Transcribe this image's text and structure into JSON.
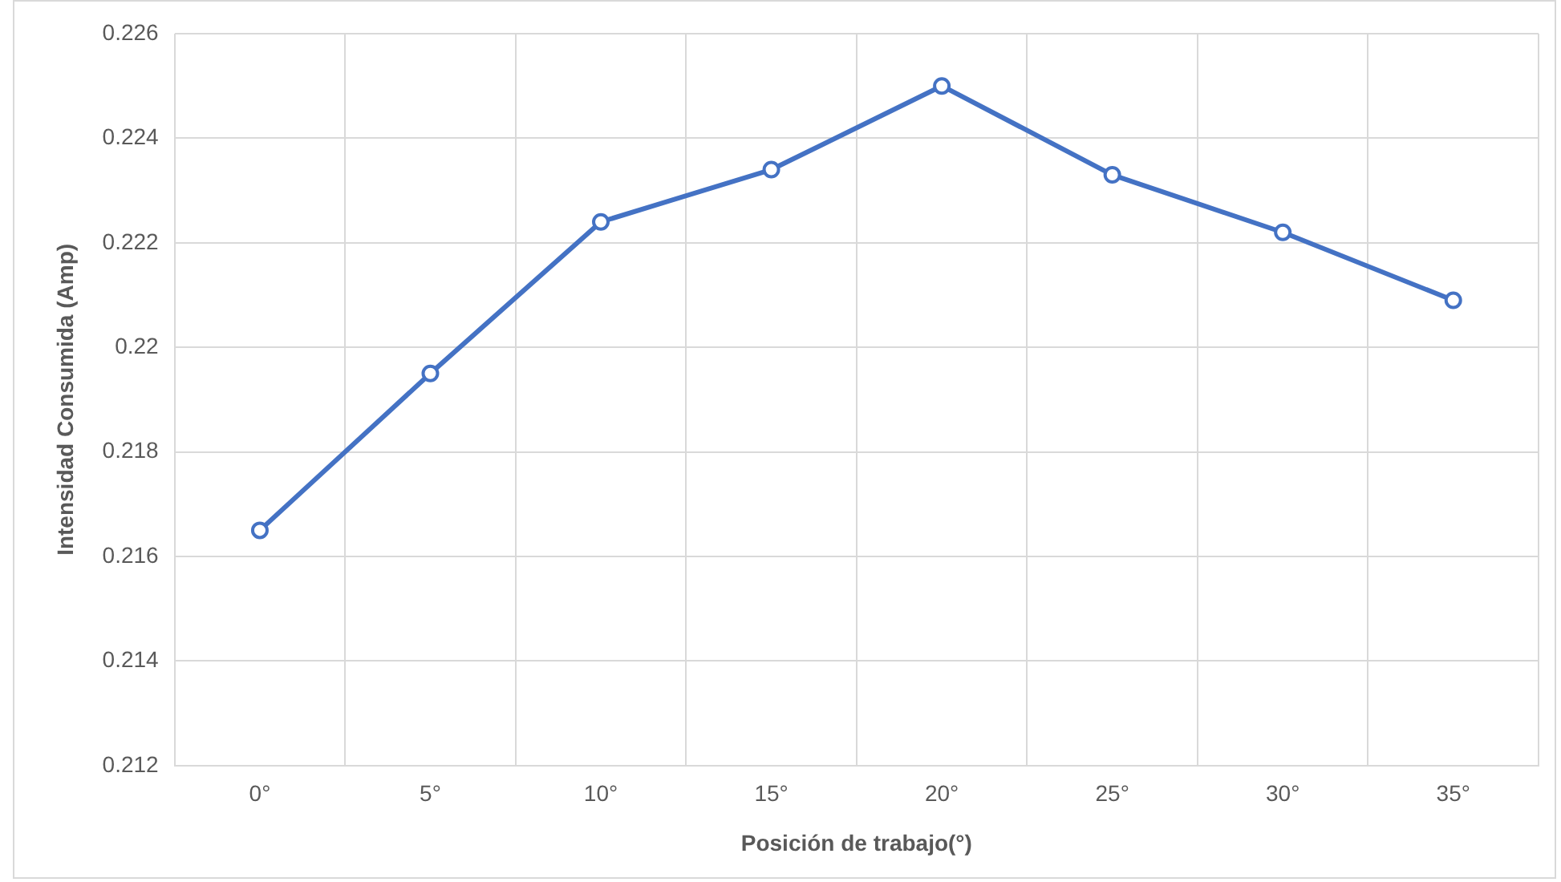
{
  "chart_data": {
    "type": "line",
    "xlabel": "Posición de trabajo(°)",
    "ylabel": "Intensidad Consumida (Amp)",
    "categories": [
      "0°",
      "5°",
      "10°",
      "15°",
      "20°",
      "25°",
      "30°",
      "35°"
    ],
    "series": [
      {
        "color": "#4472c4",
        "values": [
          0.2165,
          0.2195,
          0.2224,
          0.2234,
          0.225,
          0.2233,
          0.2222,
          0.2209
        ]
      }
    ],
    "ylim": [
      0.212,
      0.226
    ],
    "yticks": [
      0.212,
      0.214,
      0.216,
      0.218,
      0.22,
      0.222,
      0.224,
      0.226
    ],
    "grid": true,
    "marker": "circle",
    "line_style": "solid",
    "legend": false
  }
}
